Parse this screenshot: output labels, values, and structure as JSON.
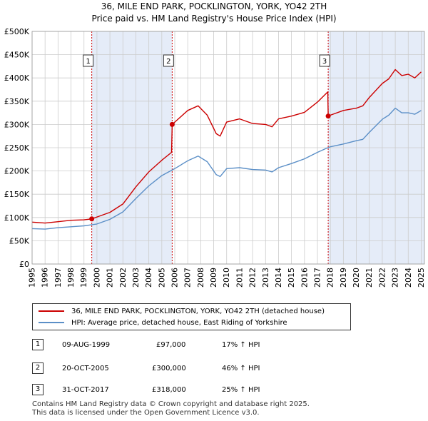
{
  "title": "36, MILE END PARK, POCKLINGTON, YORK, YO42 2TH",
  "subtitle": "Price paid vs. HM Land Registry's House Price Index (HPI)",
  "legend": {
    "property": "36, MILE END PARK, POCKLINGTON, YORK, YO42 2TH (detached house)",
    "hpi": "HPI: Average price, detached house, East Riding of Yorkshire"
  },
  "transactions": [
    {
      "num": "1",
      "date": "09-AUG-1999",
      "price": "£97,000",
      "hpi": "17% ↑ HPI"
    },
    {
      "num": "2",
      "date": "20-OCT-2005",
      "price": "£300,000",
      "hpi": "46% ↑ HPI"
    },
    {
      "num": "3",
      "date": "31-OCT-2017",
      "price": "£318,000",
      "hpi": "25% ↑ HPI"
    }
  ],
  "footer": {
    "line1": "Contains HM Land Registry data © Crown copyright and database right 2025.",
    "line2": "This data is licensed under the Open Government Licence v3.0."
  },
  "colors": {
    "property": "#cc0000",
    "hpi": "#5b8fc7",
    "shade": "#dce6f5",
    "grid": "#cccccc"
  },
  "chart_data": {
    "type": "line",
    "title": "36, MILE END PARK, POCKLINGTON, YORK, YO42 2TH",
    "subtitle": "Price paid vs. HM Land Registry's House Price Index (HPI)",
    "xlabel": "",
    "ylabel": "",
    "xlim": [
      1995,
      2025.25
    ],
    "ylim": [
      0,
      500000
    ],
    "yticks": [
      0,
      50000,
      100000,
      150000,
      200000,
      250000,
      300000,
      350000,
      400000,
      450000,
      500000
    ],
    "ytick_labels": [
      "£0",
      "£50K",
      "£100K",
      "£150K",
      "£200K",
      "£250K",
      "£300K",
      "£350K",
      "£400K",
      "£450K",
      "£500K"
    ],
    "xticks": [
      1995,
      1996,
      1997,
      1998,
      1999,
      2000,
      2001,
      2002,
      2003,
      2004,
      2005,
      2006,
      2007,
      2008,
      2009,
      2010,
      2011,
      2012,
      2013,
      2014,
      2015,
      2016,
      2017,
      2018,
      2019,
      2020,
      2021,
      2022,
      2023,
      2024,
      2025
    ],
    "xtick_labels": [
      "1995",
      "1996",
      "1997",
      "1998",
      "1999",
      "2000",
      "2001",
      "2002",
      "2003",
      "2004",
      "2005",
      "2006",
      "2007",
      "2008",
      "2009",
      "2010",
      "2011",
      "2012",
      "2013",
      "2014",
      "2015",
      "2016",
      "2017",
      "2018",
      "2019",
      "2020",
      "2021",
      "2022",
      "2023",
      "2024",
      "2025"
    ],
    "grid": true,
    "shaded_ranges": [
      [
        1999.6,
        2005.8
      ],
      [
        2017.83,
        2025.25
      ]
    ],
    "sales": [
      {
        "label": "1",
        "x": 1999.6,
        "y": 97000
      },
      {
        "label": "2",
        "x": 2005.8,
        "y": 300000
      },
      {
        "label": "3",
        "x": 2017.83,
        "y": 318000
      }
    ],
    "series": [
      {
        "name": "36, MILE END PARK, POCKLINGTON, YORK, YO42 2TH (detached house)",
        "color": "#cc0000",
        "x": [
          1995,
          1996,
          1997,
          1998,
          1999,
          1999.6,
          2000,
          2001,
          2002,
          2003,
          2004,
          2005,
          2005.75,
          2005.8,
          2006,
          2007,
          2007.8,
          2008.5,
          2009.2,
          2009.5,
          2010,
          2011,
          2012,
          2013,
          2013.5,
          2014,
          2015,
          2016,
          2017,
          2017.8,
          2017.83,
          2018,
          2019,
          2020,
          2020.5,
          2021,
          2022,
          2022.5,
          2023,
          2023.5,
          2024,
          2024.5,
          2025
        ],
        "y": [
          90000,
          88000,
          91000,
          94000,
          95000,
          97000,
          101000,
          111000,
          129000,
          166000,
          198000,
          223000,
          240000,
          300000,
          305000,
          330000,
          340000,
          320000,
          280000,
          275000,
          305000,
          312000,
          302000,
          300000,
          295000,
          312000,
          318000,
          326000,
          348000,
          370000,
          318000,
          320000,
          330000,
          335000,
          340000,
          358000,
          388000,
          398000,
          418000,
          405000,
          408000,
          400000,
          413000
        ]
      },
      {
        "name": "HPI: Average price, detached house, East Riding of Yorkshire",
        "color": "#5b8fc7",
        "x": [
          1995,
          1996,
          1997,
          1998,
          1999,
          2000,
          2001,
          2002,
          2003,
          2004,
          2005,
          2006,
          2007,
          2007.8,
          2008.5,
          2009.2,
          2009.5,
          2010,
          2011,
          2012,
          2013,
          2013.5,
          2014,
          2015,
          2016,
          2017,
          2017.8,
          2018,
          2019,
          2020,
          2020.5,
          2021,
          2022,
          2022.5,
          2023,
          2023.5,
          2024,
          2024.5,
          2025
        ],
        "y": [
          76000,
          75000,
          78000,
          80000,
          82000,
          86000,
          96000,
          112000,
          141000,
          168000,
          190000,
          205000,
          222000,
          232000,
          220000,
          192000,
          188000,
          205000,
          207000,
          203000,
          202000,
          198000,
          207000,
          216000,
          226000,
          240000,
          250000,
          252000,
          258000,
          265000,
          268000,
          283000,
          311000,
          320000,
          335000,
          325000,
          325000,
          322000,
          330000
        ]
      }
    ]
  }
}
